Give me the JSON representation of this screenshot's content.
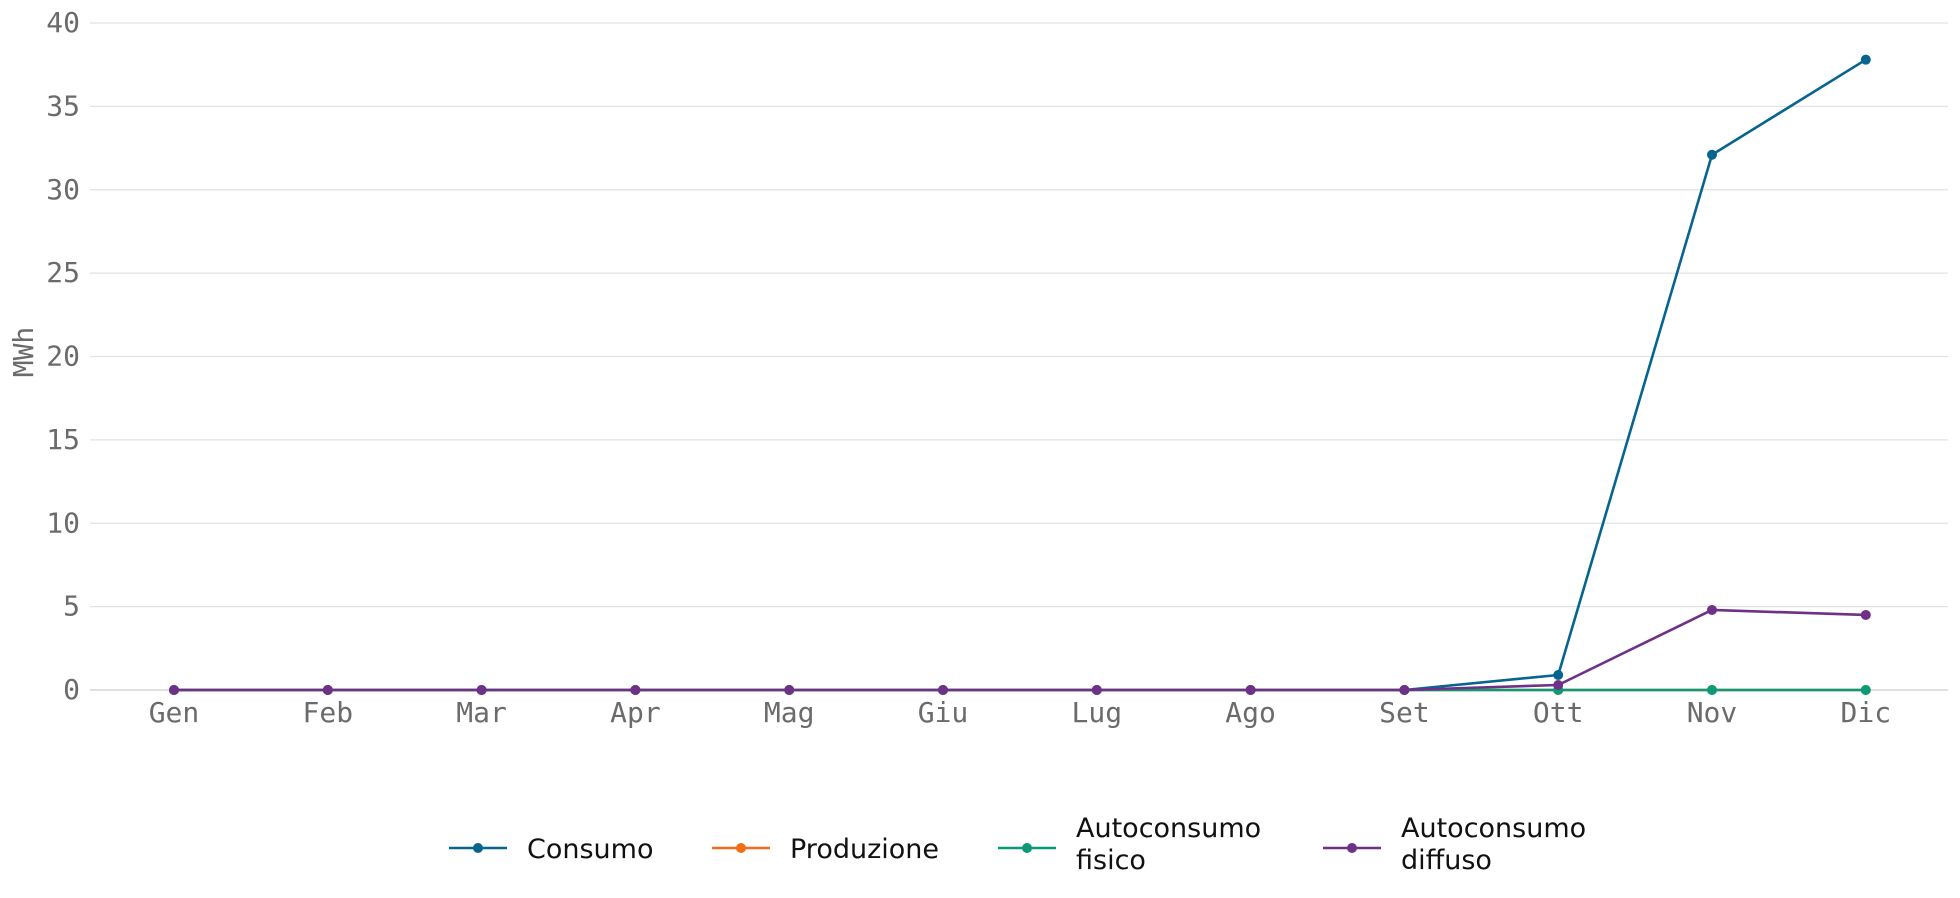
{
  "chart_data": {
    "type": "line",
    "title": "",
    "xlabel": "",
    "ylabel": "MWh",
    "categories": [
      "Gen",
      "Feb",
      "Mar",
      "Apr",
      "Mag",
      "Giu",
      "Lug",
      "Ago",
      "Set",
      "Ott",
      "Nov",
      "Dic"
    ],
    "ylim": [
      0,
      40
    ],
    "yticks": [
      0,
      5,
      10,
      15,
      20,
      25,
      30,
      35,
      40
    ],
    "grid": "horizontal",
    "legend_position": "bottom-center",
    "series": [
      {
        "name": "Consumo",
        "color": "#07648f",
        "values": [
          0,
          0,
          0,
          0,
          0,
          0,
          0,
          0,
          0,
          0.9,
          32.1,
          37.8
        ]
      },
      {
        "name": "Produzione",
        "color": "#f26d16",
        "values": [
          0,
          0,
          0,
          0,
          0,
          0,
          0,
          0,
          0,
          0,
          0,
          0
        ]
      },
      {
        "name": "Autoconsumo fisico",
        "color": "#0b9a76",
        "values": [
          0,
          0,
          0,
          0,
          0,
          0,
          0,
          0,
          0,
          0,
          0,
          0
        ]
      },
      {
        "name": "Autoconsumo diffuso",
        "color": "#6e3187",
        "values": [
          0,
          0,
          0,
          0,
          0,
          0,
          0,
          0,
          0,
          0.3,
          4.8,
          4.5
        ]
      }
    ]
  }
}
